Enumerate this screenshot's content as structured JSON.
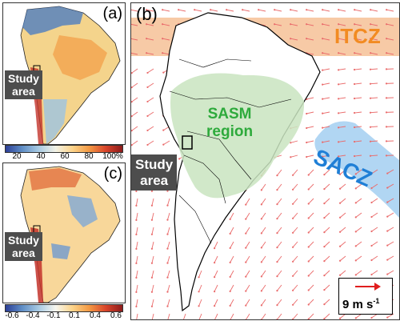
{
  "panels": {
    "a": {
      "label": "(a)",
      "study_area": [
        "Study",
        "area"
      ]
    },
    "b": {
      "label": "(b)",
      "study_area": [
        "Study",
        "area"
      ]
    },
    "c": {
      "label": "(c)",
      "study_area": [
        "Study",
        "area"
      ]
    }
  },
  "regions": {
    "itcz": "ITCZ",
    "sacz": "SACZ",
    "sasm": [
      "SASM",
      "region"
    ]
  },
  "colorbar_a": {
    "ticks": [
      "20",
      "40",
      "60",
      "80",
      "100%"
    ],
    "colors": [
      "#2c3f97",
      "#5f8ec6",
      "#a9cbe3",
      "#f2f2e6",
      "#fcd48b",
      "#f39a44",
      "#d9452b",
      "#8e1b1b"
    ]
  },
  "colorbar_c": {
    "ticks": [
      "-0.6",
      "-0.4",
      "-0.1",
      "0.1",
      "0.4",
      "0.6"
    ],
    "colors": [
      "#2c3f97",
      "#5f8ec6",
      "#a9cbe3",
      "#f7f7f0",
      "#fcd48b",
      "#f39a44",
      "#d9452b",
      "#8e1b1b"
    ]
  },
  "wind_legend": {
    "speed": "9",
    "unit": "m s",
    "exponent": "-1",
    "arrow_color": "#e01e1e"
  },
  "colors": {
    "itcz_band": "#f6c49c",
    "sacz_band": "#a8d2f2",
    "sasm_region": "#c9e4c0",
    "wind_arrows": "#ea6b6b"
  }
}
